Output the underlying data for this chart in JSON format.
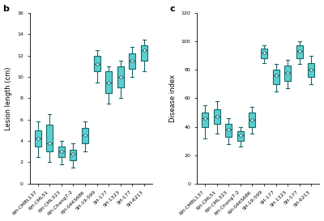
{
  "panel_b_label": "b",
  "panel_c_label": "c",
  "ylabel_b": "Lesion length (cm)",
  "ylabel_c": "Disease index",
  "ylim_b": [
    0,
    16
  ],
  "ylim_c": [
    0,
    120
  ],
  "yticks_b": [
    0.0,
    2.0,
    4.0,
    6.0,
    8.0,
    10.0,
    12.0,
    14.0,
    16.0
  ],
  "yticks_c": [
    0,
    20,
    40,
    60,
    80,
    100,
    120
  ],
  "xticklabels": [
    "RH-CMBL137",
    "RH-CML51",
    "RH-CML323",
    "RH-Chang7-2",
    "RH-04KS686",
    "SH-19-599",
    "SH-177",
    "SH-1323",
    "SH-177",
    "SH-6213"
  ],
  "box_color": "#5BCFCF",
  "box_edge_color": "#1a6666",
  "median_color": "#1a6666",
  "whisker_color": "#1a6666",
  "cap_color": "#1a6666",
  "mean_marker_color": "#ffffff",
  "mean_marker_edge": "#1a6666",
  "boxes_b": [
    {
      "q1": 3.5,
      "median": 4.2,
      "q3": 5.0,
      "whislo": 2.5,
      "whishi": 5.8,
      "mean": 4.2
    },
    {
      "q1": 3.0,
      "median": 3.8,
      "q3": 5.5,
      "whislo": 2.0,
      "whishi": 6.5,
      "mean": 3.8
    },
    {
      "q1": 2.5,
      "median": 3.0,
      "q3": 3.5,
      "whislo": 1.8,
      "whishi": 4.0,
      "mean": 3.0
    },
    {
      "q1": 2.2,
      "median": 2.8,
      "q3": 3.2,
      "whislo": 1.5,
      "whishi": 3.8,
      "mean": 2.8
    },
    {
      "q1": 3.8,
      "median": 4.5,
      "q3": 5.2,
      "whislo": 3.0,
      "whishi": 5.8,
      "mean": 4.5
    },
    {
      "q1": 10.5,
      "median": 11.2,
      "q3": 12.0,
      "whislo": 9.5,
      "whishi": 12.5,
      "mean": 11.2
    },
    {
      "q1": 8.5,
      "median": 9.5,
      "q3": 10.5,
      "whislo": 7.5,
      "whishi": 11.0,
      "mean": 9.5
    },
    {
      "q1": 9.0,
      "median": 10.0,
      "q3": 11.0,
      "whislo": 8.0,
      "whishi": 11.5,
      "mean": 10.0
    },
    {
      "q1": 10.8,
      "median": 11.5,
      "q3": 12.2,
      "whislo": 10.0,
      "whishi": 12.8,
      "mean": 11.5
    },
    {
      "q1": 11.5,
      "median": 12.5,
      "q3": 13.0,
      "whislo": 10.5,
      "whishi": 13.5,
      "mean": 12.5
    }
  ],
  "boxes_c": [
    {
      "q1": 40,
      "median": 46,
      "q3": 50,
      "whislo": 32,
      "whishi": 55,
      "mean": 46
    },
    {
      "q1": 42,
      "median": 47,
      "q3": 52,
      "whislo": 35,
      "whishi": 58,
      "mean": 47
    },
    {
      "q1": 33,
      "median": 38,
      "q3": 42,
      "whislo": 28,
      "whishi": 46,
      "mean": 38
    },
    {
      "q1": 30,
      "median": 34,
      "q3": 37,
      "whislo": 26,
      "whishi": 40,
      "mean": 34
    },
    {
      "q1": 40,
      "median": 45,
      "q3": 50,
      "whislo": 35,
      "whishi": 54,
      "mean": 45
    },
    {
      "q1": 88,
      "median": 92,
      "q3": 95,
      "whislo": 85,
      "whishi": 97,
      "mean": 92
    },
    {
      "q1": 70,
      "median": 76,
      "q3": 80,
      "whislo": 65,
      "whishi": 84,
      "mean": 76
    },
    {
      "q1": 72,
      "median": 78,
      "q3": 83,
      "whislo": 67,
      "whishi": 87,
      "mean": 78
    },
    {
      "q1": 88,
      "median": 93,
      "q3": 97,
      "whislo": 84,
      "whishi": 100,
      "mean": 93
    },
    {
      "q1": 75,
      "median": 80,
      "q3": 85,
      "whislo": 70,
      "whishi": 90,
      "mean": 80
    }
  ],
  "bg_color": "#ffffff",
  "panel_label_fontsize": 8,
  "tick_fontsize": 4.5,
  "axis_label_fontsize": 6
}
